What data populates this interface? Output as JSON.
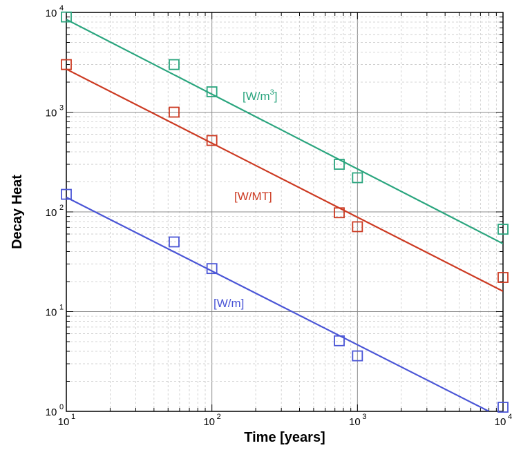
{
  "chart_data": {
    "type": "scatter",
    "xlabel": "Time [years]",
    "ylabel": "Decay Heat",
    "xscale": "log",
    "yscale": "log",
    "xlim": [
      10,
      10000
    ],
    "ylim": [
      1,
      10000
    ],
    "grid": true,
    "x_ticks": [
      {
        "base": "10",
        "exp": "1"
      },
      {
        "base": "10",
        "exp": "2"
      },
      {
        "base": "10",
        "exp": "3"
      },
      {
        "base": "10",
        "exp": "4"
      }
    ],
    "y_ticks": [
      {
        "base": "10",
        "exp": "0"
      },
      {
        "base": "10",
        "exp": "1"
      },
      {
        "base": "10",
        "exp": "2"
      },
      {
        "base": "10",
        "exp": "3"
      },
      {
        "base": "10",
        "exp": "4"
      }
    ],
    "series": [
      {
        "label_text": "[W/m",
        "label_sup": "3",
        "label_suffix": "]",
        "color": "#2aa57e",
        "x": [
          10,
          55,
          100,
          750,
          1000,
          10000
        ],
        "y": [
          9000,
          3000,
          1600,
          300,
          220,
          67
        ],
        "fit": {
          "x": [
            10,
            10000
          ],
          "y": [
            8500,
            48
          ]
        }
      },
      {
        "label_text": "[W/MT]",
        "label_sup": "",
        "label_suffix": "",
        "color": "#cc3a22",
        "x": [
          10,
          55,
          100,
          750,
          1000,
          10000
        ],
        "y": [
          3000,
          1000,
          520,
          98,
          71,
          22
        ],
        "fit": {
          "x": [
            10,
            10000
          ],
          "y": [
            2700,
            16
          ]
        }
      },
      {
        "label_text": "[W/m]",
        "label_sup": "",
        "label_suffix": "",
        "color": "#4a55d6",
        "x": [
          10,
          55,
          100,
          750,
          1000,
          10000
        ],
        "y": [
          150,
          50,
          27,
          5.1,
          3.6,
          1.1
        ],
        "fit": {
          "x": [
            10,
            8000
          ],
          "y": [
            140,
            1.0
          ]
        }
      }
    ]
  }
}
